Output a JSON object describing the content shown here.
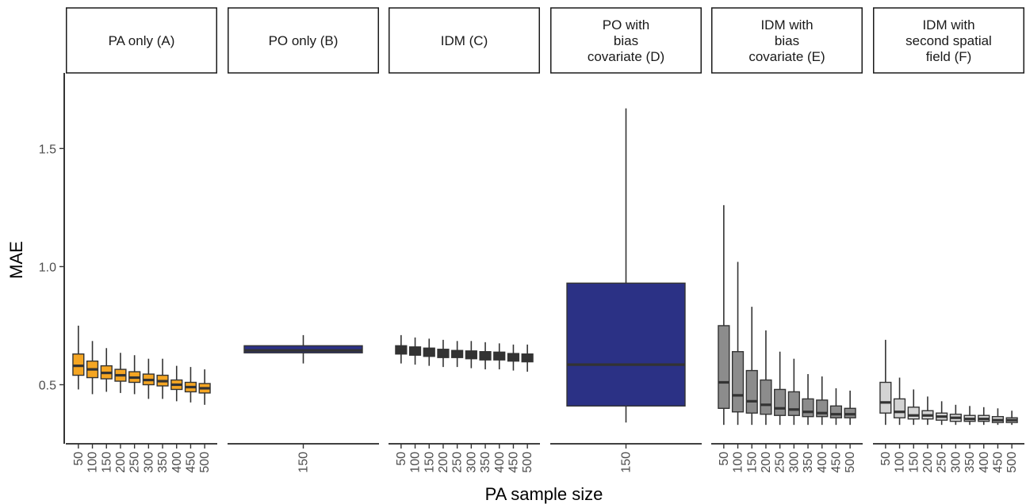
{
  "chart_data": {
    "type": "box",
    "facet": "panels",
    "ylabel": "MAE",
    "xlabel": "PA sample size",
    "ylim": [
      0.25,
      1.82
    ],
    "y_ticks": [
      0.5,
      1.0,
      1.5
    ],
    "y_tick_labels": [
      "0.5",
      "1.0",
      "1.5"
    ],
    "grid": false,
    "panels": [
      {
        "title_lines": [
          "PA only (A)"
        ],
        "fill": "#F5A623",
        "categories": [
          "50",
          "100",
          "150",
          "200",
          "250",
          "300",
          "350",
          "400",
          "450",
          "500"
        ],
        "boxes": [
          {
            "min": 0.48,
            "q1": 0.54,
            "median": 0.58,
            "q3": 0.63,
            "max": 0.75
          },
          {
            "min": 0.46,
            "q1": 0.53,
            "median": 0.565,
            "q3": 0.6,
            "max": 0.685
          },
          {
            "min": 0.47,
            "q1": 0.525,
            "median": 0.55,
            "q3": 0.58,
            "max": 0.655
          },
          {
            "min": 0.465,
            "q1": 0.515,
            "median": 0.54,
            "q3": 0.565,
            "max": 0.635
          },
          {
            "min": 0.46,
            "q1": 0.51,
            "median": 0.53,
            "q3": 0.555,
            "max": 0.625
          },
          {
            "min": 0.44,
            "q1": 0.5,
            "median": 0.52,
            "q3": 0.545,
            "max": 0.61
          },
          {
            "min": 0.44,
            "q1": 0.495,
            "median": 0.515,
            "q3": 0.54,
            "max": 0.61
          },
          {
            "min": 0.43,
            "q1": 0.48,
            "median": 0.5,
            "q3": 0.52,
            "max": 0.58
          },
          {
            "min": 0.425,
            "q1": 0.47,
            "median": 0.49,
            "q3": 0.51,
            "max": 0.575
          },
          {
            "min": 0.415,
            "q1": 0.465,
            "median": 0.485,
            "q3": 0.505,
            "max": 0.565
          }
        ]
      },
      {
        "title_lines": [
          "PO only (B)"
        ],
        "fill": "#2B3185",
        "categories": [
          "150"
        ],
        "boxes": [
          {
            "min": 0.59,
            "q1": 0.635,
            "median": 0.645,
            "q3": 0.665,
            "max": 0.71
          }
        ]
      },
      {
        "title_lines": [
          "IDM (C)"
        ],
        "fill": "#333333",
        "categories": [
          "50",
          "100",
          "150",
          "200",
          "250",
          "300",
          "350",
          "400",
          "450",
          "500"
        ],
        "boxes": [
          {
            "min": 0.59,
            "q1": 0.63,
            "median": 0.645,
            "q3": 0.665,
            "max": 0.71
          },
          {
            "min": 0.585,
            "q1": 0.625,
            "median": 0.64,
            "q3": 0.66,
            "max": 0.7
          },
          {
            "min": 0.58,
            "q1": 0.62,
            "median": 0.635,
            "q3": 0.655,
            "max": 0.695
          },
          {
            "min": 0.575,
            "q1": 0.615,
            "median": 0.63,
            "q3": 0.65,
            "max": 0.69
          },
          {
            "min": 0.575,
            "q1": 0.615,
            "median": 0.628,
            "q3": 0.645,
            "max": 0.685
          },
          {
            "min": 0.57,
            "q1": 0.61,
            "median": 0.625,
            "q3": 0.643,
            "max": 0.685
          },
          {
            "min": 0.565,
            "q1": 0.605,
            "median": 0.62,
            "q3": 0.64,
            "max": 0.68
          },
          {
            "min": 0.565,
            "q1": 0.605,
            "median": 0.618,
            "q3": 0.638,
            "max": 0.675
          },
          {
            "min": 0.56,
            "q1": 0.6,
            "median": 0.615,
            "q3": 0.632,
            "max": 0.67
          },
          {
            "min": 0.555,
            "q1": 0.597,
            "median": 0.612,
            "q3": 0.63,
            "max": 0.67
          }
        ]
      },
      {
        "title_lines": [
          "PO with",
          "bias",
          "covariate (D)"
        ],
        "fill": "#2B3185",
        "categories": [
          "150"
        ],
        "boxes": [
          {
            "min": 0.34,
            "q1": 0.41,
            "median": 0.585,
            "q3": 0.93,
            "max": 1.67
          }
        ]
      },
      {
        "title_lines": [
          "IDM with",
          "bias",
          "covariate (E)"
        ],
        "fill": "#8C8C8C",
        "categories": [
          "50",
          "100",
          "150",
          "200",
          "250",
          "300",
          "350",
          "400",
          "450",
          "500"
        ],
        "boxes": [
          {
            "min": 0.33,
            "q1": 0.4,
            "median": 0.51,
            "q3": 0.75,
            "max": 1.26
          },
          {
            "min": 0.33,
            "q1": 0.385,
            "median": 0.455,
            "q3": 0.64,
            "max": 1.02
          },
          {
            "min": 0.33,
            "q1": 0.38,
            "median": 0.43,
            "q3": 0.56,
            "max": 0.83
          },
          {
            "min": 0.33,
            "q1": 0.375,
            "median": 0.415,
            "q3": 0.52,
            "max": 0.73
          },
          {
            "min": 0.33,
            "q1": 0.37,
            "median": 0.4,
            "q3": 0.48,
            "max": 0.64
          },
          {
            "min": 0.33,
            "q1": 0.37,
            "median": 0.395,
            "q3": 0.47,
            "max": 0.61
          },
          {
            "min": 0.33,
            "q1": 0.365,
            "median": 0.385,
            "q3": 0.44,
            "max": 0.545
          },
          {
            "min": 0.33,
            "q1": 0.365,
            "median": 0.38,
            "q3": 0.435,
            "max": 0.535
          },
          {
            "min": 0.33,
            "q1": 0.36,
            "median": 0.375,
            "q3": 0.41,
            "max": 0.485
          },
          {
            "min": 0.33,
            "q1": 0.36,
            "median": 0.375,
            "q3": 0.4,
            "max": 0.475
          }
        ]
      },
      {
        "title_lines": [
          "IDM with",
          "second spatial",
          "field (F)"
        ],
        "fill": "#D3D3D3",
        "categories": [
          "50",
          "100",
          "150",
          "200",
          "250",
          "300",
          "350",
          "400",
          "450",
          "500"
        ],
        "boxes": [
          {
            "min": 0.33,
            "q1": 0.38,
            "median": 0.425,
            "q3": 0.51,
            "max": 0.69
          },
          {
            "min": 0.33,
            "q1": 0.36,
            "median": 0.385,
            "q3": 0.44,
            "max": 0.53
          },
          {
            "min": 0.33,
            "q1": 0.355,
            "median": 0.37,
            "q3": 0.405,
            "max": 0.48
          },
          {
            "min": 0.33,
            "q1": 0.355,
            "median": 0.37,
            "q3": 0.39,
            "max": 0.45
          },
          {
            "min": 0.33,
            "q1": 0.35,
            "median": 0.365,
            "q3": 0.38,
            "max": 0.43
          },
          {
            "min": 0.33,
            "q1": 0.345,
            "median": 0.36,
            "q3": 0.375,
            "max": 0.415
          },
          {
            "min": 0.33,
            "q1": 0.345,
            "median": 0.355,
            "q3": 0.37,
            "max": 0.41
          },
          {
            "min": 0.33,
            "q1": 0.345,
            "median": 0.355,
            "q3": 0.37,
            "max": 0.405
          },
          {
            "min": 0.33,
            "q1": 0.34,
            "median": 0.35,
            "q3": 0.365,
            "max": 0.4
          },
          {
            "min": 0.33,
            "q1": 0.34,
            "median": 0.35,
            "q3": 0.36,
            "max": 0.39
          }
        ]
      }
    ]
  }
}
